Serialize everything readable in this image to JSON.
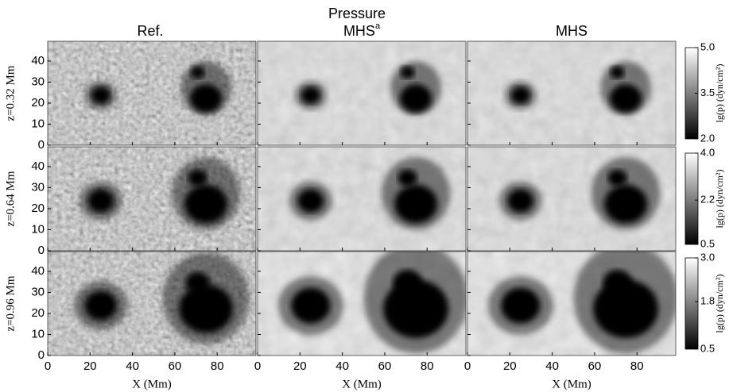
{
  "figure": {
    "title": "Pressure",
    "columns": [
      {
        "title": "Ref."
      },
      {
        "title": "MHS",
        "superscript": "a"
      },
      {
        "title": "MHS"
      }
    ],
    "rows": [
      {
        "label": "z=0.32 Mm",
        "colorbar": {
          "label": "lg(p) (dyn/cm²)",
          "lim": [
            2.0,
            5.0
          ],
          "ticks": [
            {
              "value": 5,
              "label": "5.0"
            },
            {
              "value": 3.5,
              "label": "3.5"
            },
            {
              "value": 2,
              "label": "2.0"
            }
          ]
        }
      },
      {
        "label": "z=0.64 Mm",
        "colorbar": {
          "label": "lg(p) (dyn/cm²)",
          "lim": [
            0.5,
            4.0
          ],
          "ticks": [
            {
              "value": 4,
              "label": "4.0"
            },
            {
              "value": 2.2,
              "label": "2.2"
            },
            {
              "value": 0.5,
              "label": "0.5"
            }
          ]
        }
      },
      {
        "label": "z=0.96 Mm",
        "colorbar": {
          "label": "lg(p) (dyn/cm²)",
          "lim": [
            0.5,
            3.0
          ],
          "ticks": [
            {
              "value": 3,
              "label": "3.0"
            },
            {
              "value": 1.8,
              "label": "1.8"
            },
            {
              "value": 0.5,
              "label": "0.5"
            }
          ]
        }
      }
    ],
    "x_label": "X (Mm)",
    "xlim": [
      0,
      98.3
    ],
    "xticks": [
      0,
      20,
      40,
      60,
      80
    ],
    "ylim": [
      0,
      49.4
    ],
    "yticks": [
      0,
      10,
      20,
      30,
      40
    ]
  }
}
